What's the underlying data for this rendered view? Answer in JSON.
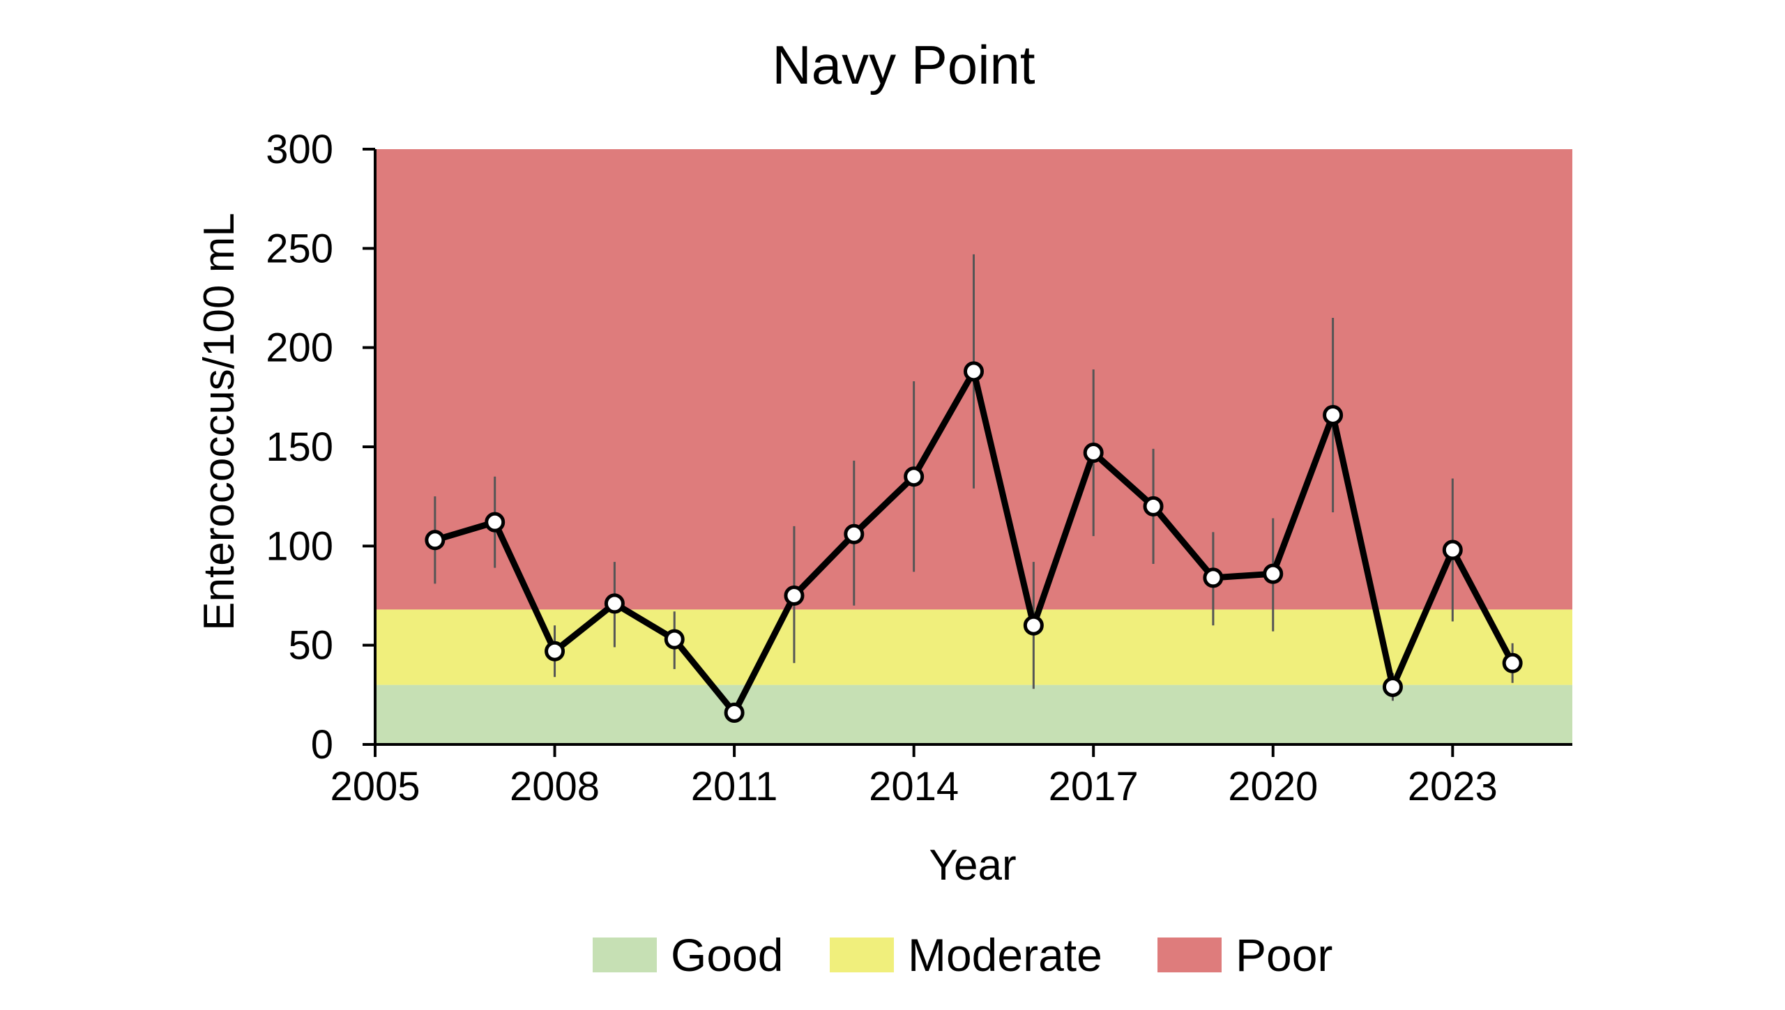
{
  "chart_data": {
    "type": "line",
    "title": "Navy Point",
    "xlabel": "Year",
    "ylabel": "Enterococcus/100 mL",
    "xlim": [
      2005,
      2025
    ],
    "ylim": [
      0,
      300
    ],
    "x_ticks": [
      2005,
      2008,
      2011,
      2014,
      2017,
      2020,
      2023
    ],
    "y_ticks": [
      0,
      50,
      100,
      150,
      200,
      250,
      300
    ],
    "grid": false,
    "legend_position": "bottom",
    "bands": [
      {
        "name": "Good",
        "from": 0,
        "to": 30,
        "color": "#c6e0b4"
      },
      {
        "name": "Moderate",
        "from": 30,
        "to": 68,
        "color": "#f0ef7c"
      },
      {
        "name": "Poor",
        "from": 68,
        "to": 300,
        "color": "#de7c7c"
      }
    ],
    "series": [
      {
        "line_color": "#000000",
        "marker_fill": "#ffffff",
        "error_bar_color": "#555555",
        "points": [
          {
            "x": 2006,
            "y": 103,
            "low": 81,
            "high": 125
          },
          {
            "x": 2007,
            "y": 112,
            "low": 89,
            "high": 135
          },
          {
            "x": 2008,
            "y": 47,
            "low": 34,
            "high": 60
          },
          {
            "x": 2009,
            "y": 71,
            "low": 49,
            "high": 92
          },
          {
            "x": 2010,
            "y": 53,
            "low": 38,
            "high": 67
          },
          {
            "x": 2011,
            "y": 16,
            "low": 13,
            "high": 19
          },
          {
            "x": 2012,
            "y": 75,
            "low": 41,
            "high": 110
          },
          {
            "x": 2013,
            "y": 106,
            "low": 70,
            "high": 143
          },
          {
            "x": 2014,
            "y": 135,
            "low": 87,
            "high": 183
          },
          {
            "x": 2015,
            "y": 188,
            "low": 129,
            "high": 247
          },
          {
            "x": 2016,
            "y": 60,
            "low": 28,
            "high": 92
          },
          {
            "x": 2017,
            "y": 147,
            "low": 105,
            "high": 189
          },
          {
            "x": 2018,
            "y": 120,
            "low": 91,
            "high": 149
          },
          {
            "x": 2019,
            "y": 84,
            "low": 60,
            "high": 107
          },
          {
            "x": 2020,
            "y": 86,
            "low": 57,
            "high": 114
          },
          {
            "x": 2021,
            "y": 166,
            "low": 117,
            "high": 215
          },
          {
            "x": 2022,
            "y": 29,
            "low": 22,
            "high": 36
          },
          {
            "x": 2023,
            "y": 98,
            "low": 62,
            "high": 134
          },
          {
            "x": 2024,
            "y": 41,
            "low": 31,
            "high": 51
          }
        ]
      }
    ]
  }
}
